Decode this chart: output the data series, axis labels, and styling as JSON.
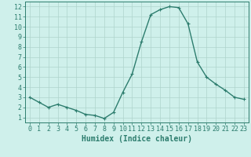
{
  "x": [
    0,
    1,
    2,
    3,
    4,
    5,
    6,
    7,
    8,
    9,
    10,
    11,
    12,
    13,
    14,
    15,
    16,
    17,
    18,
    19,
    20,
    21,
    22,
    23
  ],
  "y": [
    3.0,
    2.5,
    2.0,
    2.3,
    2.0,
    1.7,
    1.3,
    1.2,
    0.9,
    1.5,
    3.5,
    5.3,
    8.5,
    11.2,
    11.7,
    12.0,
    11.9,
    10.3,
    6.5,
    5.0,
    4.3,
    3.7,
    3.0,
    2.8
  ],
  "line_color": "#2d7d6e",
  "marker": "+",
  "marker_size": 3,
  "background_color": "#cff0eb",
  "grid_color": "#aed4cc",
  "xlabel": "Humidex (Indice chaleur)",
  "xlabel_fontsize": 7,
  "tick_fontsize": 6,
  "ylim": [
    0.5,
    12.5
  ],
  "xlim": [
    -0.5,
    23.5
  ],
  "yticks": [
    1,
    2,
    3,
    4,
    5,
    6,
    7,
    8,
    9,
    10,
    11,
    12
  ],
  "xticks": [
    0,
    1,
    2,
    3,
    4,
    5,
    6,
    7,
    8,
    9,
    10,
    11,
    12,
    13,
    14,
    15,
    16,
    17,
    18,
    19,
    20,
    21,
    22,
    23
  ]
}
